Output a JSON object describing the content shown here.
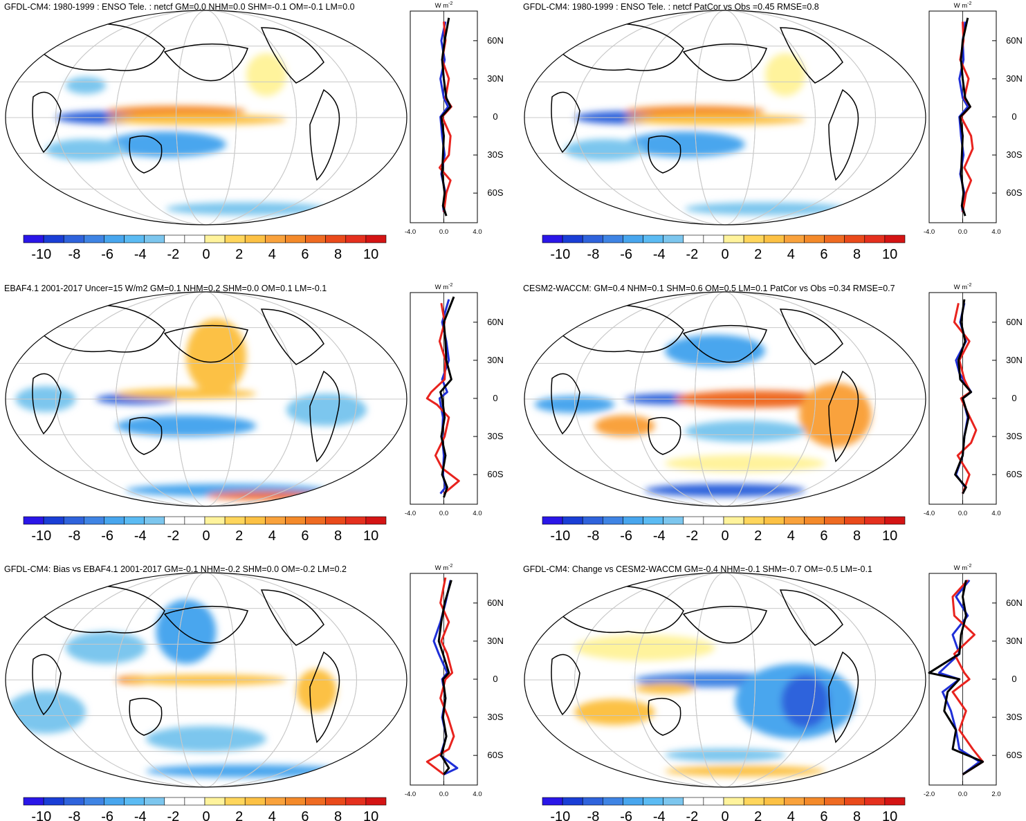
{
  "figure": {
    "description_hidden": false,
    "colorbar_ticks": [
      "-10",
      "-8",
      "-6",
      "-4",
      "-2",
      "0",
      "2",
      "4",
      "6",
      "8",
      "10"
    ],
    "colorbar_colors": [
      "#2a16e8",
      "#1a3ed6",
      "#2f63dc",
      "#3f84e4",
      "#48a6ee",
      "#5bbbf3",
      "#7cc6ee",
      "#ffffff",
      "#ffffff",
      "#fff39c",
      "#ffd65c",
      "#fcc144",
      "#f9a23c",
      "#f48a2a",
      "#ef6b22",
      "#ea4a1b",
      "#e5301e",
      "#d41414"
    ],
    "lat_ticks": [
      "60N",
      "30N",
      "0",
      "30S",
      "60S"
    ],
    "lat_values": [
      60,
      30,
      0,
      -30,
      -60
    ],
    "zonal_unit": "W m",
    "zonal_unit_exp": "-2",
    "legend_colors": {
      "model": "#1f2fd8",
      "obs": "#e8231e",
      "diff": "#000000"
    }
  },
  "chart_data": [
    {
      "type": "heatmap",
      "title": "GFDL-CM4: 1980-1999 : ENSO Tele. : netcf GM=0.0 NHM=0.0 SHM=-0.1 OM=-0.1 LM=0.0",
      "colorbar_range": [
        -10,
        10
      ],
      "zonal_mean": {
        "type": "line",
        "xlim": [
          -4.0,
          4.0
        ],
        "x_ticks": [
          "-4.0",
          "0.0",
          "4.0"
        ],
        "ylabel": "W m-2",
        "series": [
          {
            "name": "model",
            "color": "#1f2fd8",
            "lat": [
              75,
              60,
              45,
              30,
              15,
              8,
              0,
              -15,
              -30,
              -45,
              -60,
              -70,
              -75
            ],
            "values": [
              0.2,
              -0.3,
              0.1,
              -0.4,
              0.0,
              0.5,
              -0.4,
              -0.2,
              0.1,
              -0.3,
              0.2,
              -0.1,
              0.0
            ]
          },
          {
            "name": "obs",
            "color": "#e8231e",
            "lat": [
              75,
              60,
              45,
              30,
              15,
              8,
              0,
              -15,
              -30,
              -40,
              -50,
              -60,
              -75
            ],
            "values": [
              0.0,
              0.2,
              -0.2,
              0.6,
              0.2,
              0.9,
              -0.2,
              0.8,
              0.6,
              -0.5,
              0.8,
              0.3,
              0.0
            ]
          },
          {
            "name": "diff",
            "color": "#000000",
            "lat": [
              78,
              60,
              45,
              30,
              15,
              8,
              0,
              -15,
              -30,
              -45,
              -60,
              -70,
              -78
            ],
            "values": [
              0.6,
              0.1,
              -0.2,
              0.0,
              0.3,
              0.8,
              -0.3,
              0.0,
              -0.1,
              -0.2,
              0.1,
              -0.1,
              0.3
            ]
          }
        ]
      }
    },
    {
      "type": "heatmap",
      "title": "GFDL-CM4: 1980-1999 : ENSO Tele. : netcf PatCor vs Obs =0.45 RMSE=0.8",
      "colorbar_range": [
        -10,
        10
      ],
      "zonal_mean": {
        "type": "line",
        "xlim": [
          -4.0,
          4.0
        ],
        "x_ticks": [
          "-4.0",
          "0.0",
          "4.0"
        ],
        "ylabel": "W m-2",
        "series": [
          {
            "name": "model",
            "color": "#1f2fd8",
            "lat": [
              75,
              60,
              45,
              30,
              15,
              8,
              0,
              -15,
              -30,
              -45,
              -60,
              -70,
              -75
            ],
            "values": [
              0.3,
              0.0,
              0.1,
              -0.4,
              0.0,
              0.6,
              -0.4,
              -0.2,
              0.1,
              -0.3,
              0.2,
              -0.1,
              0.0
            ]
          },
          {
            "name": "obs",
            "color": "#e8231e",
            "lat": [
              75,
              60,
              45,
              30,
              15,
              8,
              0,
              -15,
              -25,
              -40,
              -50,
              -60,
              -75
            ],
            "values": [
              0.0,
              0.1,
              -0.3,
              0.7,
              0.2,
              0.9,
              -0.2,
              1.0,
              1.2,
              0.2,
              1.0,
              0.4,
              0.0
            ]
          },
          {
            "name": "diff",
            "color": "#000000",
            "lat": [
              78,
              60,
              45,
              30,
              15,
              8,
              0,
              -15,
              -30,
              -45,
              -60,
              -70,
              -78
            ],
            "values": [
              0.6,
              0.0,
              -0.2,
              0.0,
              0.3,
              0.9,
              -0.3,
              0.0,
              -0.1,
              -0.2,
              0.1,
              -0.1,
              0.3
            ]
          }
        ]
      }
    },
    {
      "type": "heatmap",
      "title": "EBAF4.1 2001-2017 Uncer=15 W/m2 GM=0.1 NHM=0.2 SHM=0.0 OM=0.1 LM=-0.1",
      "colorbar_range": [
        -10,
        10
      ],
      "zonal_mean": {
        "type": "line",
        "xlim": [
          -4.0,
          4.0
        ],
        "x_ticks": [
          "-4.0",
          "0.0",
          "4.0"
        ],
        "ylabel": "W m-2",
        "series": [
          {
            "name": "model",
            "color": "#1f2fd8",
            "lat": [
              78,
              60,
              45,
              30,
              15,
              5,
              0,
              -15,
              -30,
              -45,
              -60,
              -70,
              -75
            ],
            "values": [
              0.6,
              -0.2,
              0.3,
              0.6,
              -0.2,
              0.4,
              -0.5,
              -0.1,
              -0.2,
              0.0,
              -0.1,
              0.2,
              -0.4
            ]
          },
          {
            "name": "obs",
            "color": "#e8231e",
            "lat": [
              75,
              60,
              45,
              30,
              15,
              5,
              0,
              -5,
              -15,
              -30,
              -45,
              -55,
              -65,
              -75
            ],
            "values": [
              -0.3,
              0.1,
              -0.5,
              0.2,
              0.1,
              -1.5,
              -2.0,
              -0.8,
              0.6,
              0.1,
              -1.0,
              -0.2,
              1.8,
              0.0
            ]
          },
          {
            "name": "diff",
            "color": "#000000",
            "lat": [
              80,
              60,
              45,
              30,
              15,
              5,
              0,
              -15,
              -30,
              -45,
              -60,
              -70,
              -78
            ],
            "values": [
              1.2,
              0.0,
              0.2,
              0.3,
              0.9,
              -0.4,
              -0.2,
              0.1,
              -0.3,
              0.2,
              -0.2,
              0.4,
              0.0
            ]
          }
        ]
      }
    },
    {
      "type": "heatmap",
      "title": "CESM2-WACCM: GM=0.4 NHM=0.1 SHM=0.6 OM=0.5 LM=0.1 PatCor vs Obs =0.34 RMSE=0.7",
      "colorbar_range": [
        -10,
        10
      ],
      "zonal_mean": {
        "type": "line",
        "xlim": [
          -4.0,
          4.0
        ],
        "x_ticks": [
          "-4.0",
          "0.0",
          "4.0"
        ],
        "ylabel": "W m-2",
        "series": [
          {
            "name": "model",
            "color": "#1f2fd8",
            "lat": [
              75,
              60,
              45,
              30,
              20,
              5,
              0,
              -15,
              -30,
              -45,
              -60,
              -70,
              -75
            ],
            "values": [
              0.2,
              -0.3,
              0.4,
              -0.8,
              -0.4,
              1.0,
              0.0,
              0.6,
              0.2,
              0.0,
              -0.8,
              0.3,
              0.0
            ]
          },
          {
            "name": "obs",
            "color": "#e8231e",
            "lat": [
              75,
              60,
              45,
              30,
              15,
              5,
              0,
              -10,
              -25,
              -35,
              -45,
              -60,
              -75
            ],
            "values": [
              -0.5,
              -1.0,
              0.8,
              -0.4,
              0.2,
              0.9,
              -0.2,
              0.5,
              1.6,
              1.0,
              -0.6,
              0.8,
              0.0
            ]
          },
          {
            "name": "diff",
            "color": "#000000",
            "lat": [
              78,
              60,
              45,
              30,
              15,
              5,
              0,
              -15,
              -30,
              -45,
              -60,
              -70,
              -75
            ],
            "values": [
              0.2,
              -0.2,
              0.3,
              -0.5,
              -0.3,
              1.0,
              0.0,
              0.7,
              0.2,
              0.0,
              -0.9,
              0.4,
              0.0
            ]
          }
        ]
      }
    },
    {
      "type": "heatmap",
      "title": "GFDL-CM4: Bias vs EBAF4.1 2001-2017 GM=-0.1 NHM=-0.2 SHM=0.0 OM=-0.2 LM=0.2",
      "colorbar_range": [
        -10,
        10
      ],
      "zonal_mean": {
        "type": "line",
        "xlim": [
          -4.0,
          4.0
        ],
        "x_ticks": [
          "-4.0",
          "0.0",
          "4.0"
        ],
        "ylabel": "W m-2",
        "series": [
          {
            "name": "model",
            "color": "#1f2fd8",
            "lat": [
              78,
              60,
              45,
              30,
              20,
              5,
              0,
              -15,
              -30,
              -45,
              -60,
              -70,
              -75
            ],
            "values": [
              0.8,
              0.2,
              -0.4,
              -1.2,
              -0.6,
              0.4,
              -0.2,
              0.2,
              -0.2,
              0.3,
              -0.4,
              1.6,
              0.0
            ]
          },
          {
            "name": "obs",
            "color": "#e8231e",
            "lat": [
              80,
              60,
              45,
              30,
              20,
              5,
              0,
              -15,
              -30,
              -45,
              -55,
              -65,
              -75
            ],
            "values": [
              0.2,
              -0.4,
              0.6,
              -0.3,
              0.4,
              1.0,
              0.2,
              -0.4,
              0.5,
              1.2,
              0.6,
              -2.0,
              0.0
            ]
          },
          {
            "name": "diff",
            "color": "#000000",
            "lat": [
              78,
              60,
              45,
              30,
              20,
              5,
              0,
              -15,
              -30,
              -45,
              -60,
              -70,
              -75
            ],
            "values": [
              0.9,
              0.1,
              -0.3,
              -0.6,
              -0.1,
              0.6,
              -0.1,
              0.2,
              -0.1,
              0.3,
              -0.3,
              0.6,
              0.0
            ]
          }
        ]
      }
    },
    {
      "type": "heatmap",
      "title": "GFDL-CM4: Change vs CESM2-WACCM GM=-0.4 NHM=-0.1 SHM=-0.7 OM=-0.5 LM=-0.1",
      "colorbar_range": [
        -10,
        10
      ],
      "zonal_mean": {
        "type": "line",
        "xlim": [
          -2.0,
          2.0
        ],
        "x_ticks": [
          "-2.0",
          "0.0",
          "2.0"
        ],
        "ylabel": "W m-2",
        "series": [
          {
            "name": "model",
            "color": "#1f2fd8",
            "lat": [
              78,
              65,
              50,
              35,
              20,
              5,
              0,
              -10,
              -25,
              -40,
              -55,
              -65,
              -75
            ],
            "values": [
              0.4,
              -0.4,
              0.3,
              -0.6,
              -0.2,
              -1.4,
              -0.2,
              -1.2,
              -0.7,
              -0.4,
              -0.2,
              1.0,
              0.0
            ]
          },
          {
            "name": "obs",
            "color": "#e8231e",
            "lat": [
              78,
              65,
              50,
              35,
              20,
              5,
              0,
              -10,
              -25,
              -40,
              -55,
              -65,
              -75
            ],
            "values": [
              0.3,
              -0.6,
              -0.5,
              0.7,
              -0.5,
              0.1,
              0.4,
              -0.6,
              0.2,
              -0.2,
              0.6,
              1.2,
              0.0
            ]
          },
          {
            "name": "diff",
            "color": "#000000",
            "lat": [
              78,
              65,
              50,
              35,
              20,
              5,
              0,
              -10,
              -25,
              -40,
              -55,
              -65,
              -75
            ],
            "values": [
              0.2,
              0.0,
              0.2,
              -0.1,
              -0.2,
              -2.0,
              -0.2,
              -0.9,
              -1.1,
              -0.4,
              -0.6,
              1.2,
              0.0
            ]
          }
        ]
      }
    }
  ]
}
